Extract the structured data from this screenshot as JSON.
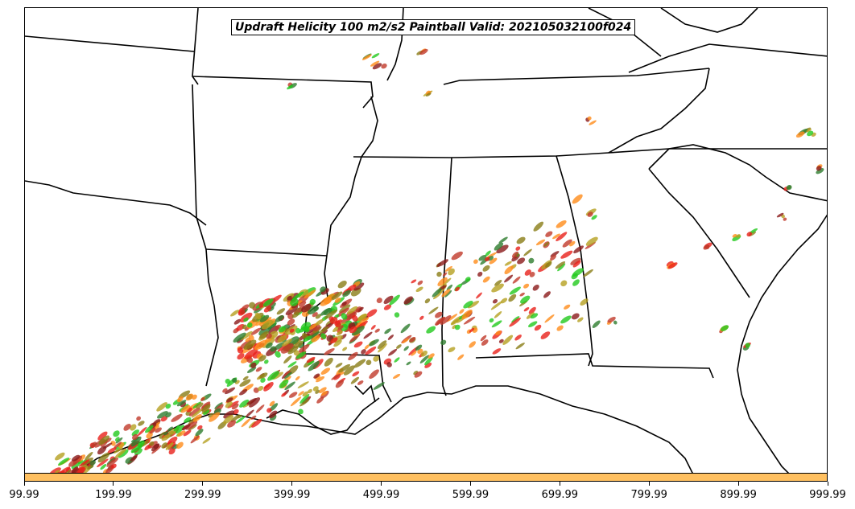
{
  "title": "Updraft Helicity 100 m2/s2 Paintball Valid: 202105032100f024",
  "colorbar": {
    "color": "#ffc060",
    "tick_labels": [
      "99.99",
      "199.99",
      "299.99",
      "399.99",
      "499.99",
      "599.99",
      "699.99",
      "799.99",
      "899.99",
      "999.99"
    ]
  },
  "paintball_colors": [
    "#e8201a",
    "#ff8c1a",
    "#8a7d16",
    "#8b1a1a",
    "#22c91d",
    "#2e7d2e",
    "#c0392b",
    "#b5a020"
  ],
  "map": {
    "type": "paintball-map",
    "variable": "Updraft Helicity",
    "threshold": "100 m2/s2",
    "valid": "202105032100f024",
    "region": "Southeastern United States"
  }
}
